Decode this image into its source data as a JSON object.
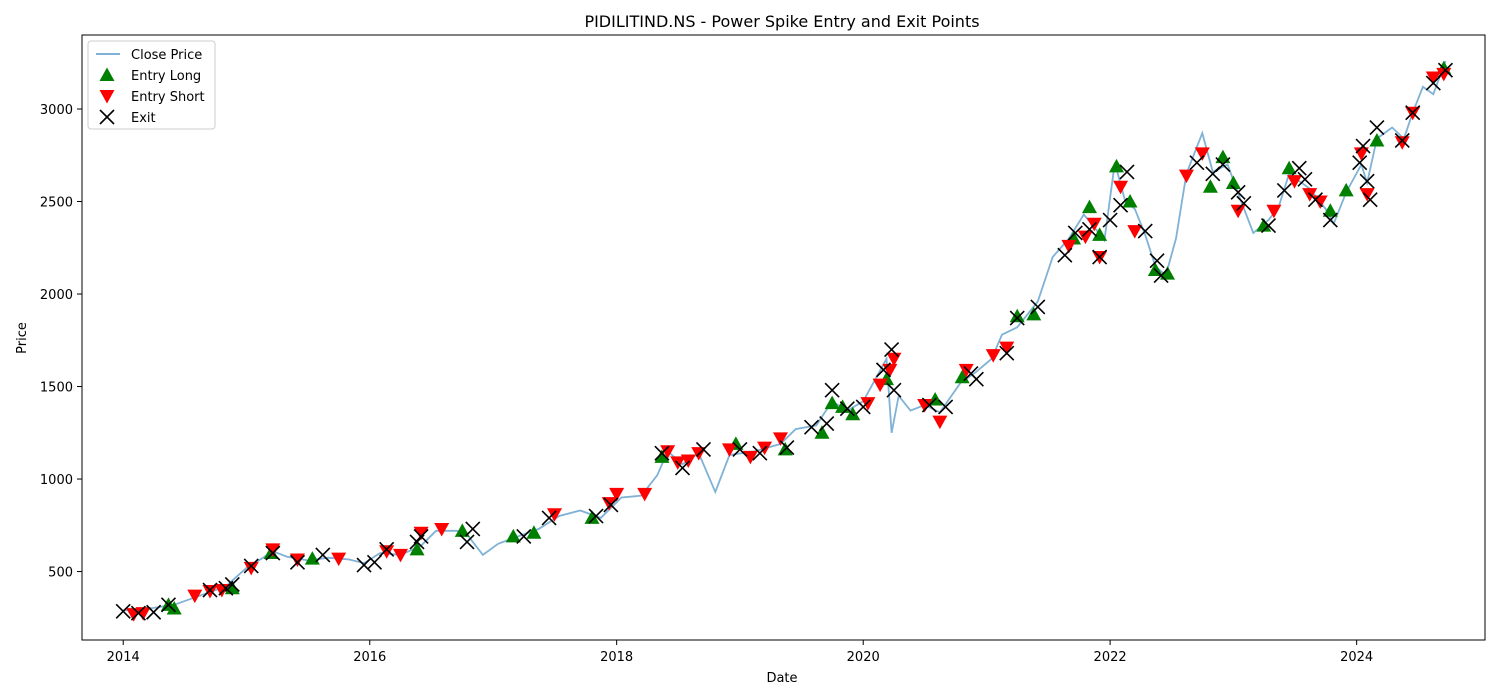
{
  "chart_data": {
    "type": "line",
    "title": "PIDILITIND.NS - Power Spike Entry and Exit Points",
    "xlabel": "Date",
    "ylabel": "Price",
    "xlim": [
      "2013-09-01",
      "2025-01-15"
    ],
    "ylim": [
      130,
      3400
    ],
    "x_ticks": [
      "2014",
      "2016",
      "2018",
      "2020",
      "2022",
      "2024"
    ],
    "y_ticks": [
      500,
      1000,
      1500,
      2000,
      2500,
      3000
    ],
    "legend_position": "top-left",
    "grid": false,
    "colors": {
      "close": "#7fb2d6",
      "entry_long": "#008000",
      "entry_short": "#ff0000",
      "exit": "#000000"
    },
    "series": [
      {
        "name": "Close Price",
        "style": "line",
        "points": [
          [
            "2014-01-01",
            290
          ],
          [
            "2014-03-01",
            295
          ],
          [
            "2014-06-01",
            320
          ],
          [
            "2014-09-01",
            380
          ],
          [
            "2014-11-01",
            420
          ],
          [
            "2015-01-01",
            520
          ],
          [
            "2015-02-15",
            570
          ],
          [
            "2015-03-20",
            610
          ],
          [
            "2015-05-01",
            580
          ],
          [
            "2015-07-01",
            560
          ],
          [
            "2015-09-01",
            575
          ],
          [
            "2015-11-01",
            565
          ],
          [
            "2015-12-15",
            545
          ],
          [
            "2016-02-01",
            600
          ],
          [
            "2016-04-01",
            590
          ],
          [
            "2016-06-01",
            640
          ],
          [
            "2016-07-15",
            720
          ],
          [
            "2016-09-15",
            720
          ],
          [
            "2016-10-15",
            700
          ],
          [
            "2016-12-01",
            590
          ],
          [
            "2017-01-15",
            650
          ],
          [
            "2017-03-15",
            690
          ],
          [
            "2017-05-15",
            730
          ],
          [
            "2017-07-15",
            800
          ],
          [
            "2017-09-15",
            830
          ],
          [
            "2017-11-15",
            790
          ],
          [
            "2018-01-15",
            900
          ],
          [
            "2018-03-15",
            910
          ],
          [
            "2018-05-01",
            1020
          ],
          [
            "2018-06-01",
            1150
          ],
          [
            "2018-07-15",
            1080
          ],
          [
            "2018-09-01",
            1140
          ],
          [
            "2018-10-20",
            930
          ],
          [
            "2018-12-01",
            1130
          ],
          [
            "2019-02-15",
            1150
          ],
          [
            "2019-05-01",
            1190
          ],
          [
            "2019-06-15",
            1270
          ],
          [
            "2019-08-15",
            1290
          ],
          [
            "2019-10-01",
            1420
          ],
          [
            "2019-11-15",
            1370
          ],
          [
            "2020-01-01",
            1420
          ],
          [
            "2020-02-15",
            1570
          ],
          [
            "2020-03-10",
            1650
          ],
          [
            "2020-03-25",
            1250
          ],
          [
            "2020-04-15",
            1450
          ],
          [
            "2020-05-20",
            1370
          ],
          [
            "2020-07-01",
            1400
          ],
          [
            "2020-08-15",
            1360
          ],
          [
            "2020-10-15",
            1520
          ],
          [
            "2020-12-01",
            1580
          ],
          [
            "2021-01-15",
            1650
          ],
          [
            "2021-02-15",
            1780
          ],
          [
            "2021-04-01",
            1820
          ],
          [
            "2021-06-01",
            1960
          ],
          [
            "2021-07-15",
            2200
          ],
          [
            "2021-09-01",
            2300
          ],
          [
            "2021-10-15",
            2430
          ],
          [
            "2021-11-20",
            2350
          ],
          [
            "2021-12-15",
            2290
          ],
          [
            "2022-01-15",
            2710
          ],
          [
            "2022-02-15",
            2500
          ],
          [
            "2022-03-15",
            2460
          ],
          [
            "2022-04-15",
            2320
          ],
          [
            "2022-05-15",
            2150
          ],
          [
            "2022-06-15",
            2100
          ],
          [
            "2022-07-15",
            2300
          ],
          [
            "2022-08-15",
            2650
          ],
          [
            "2022-10-01",
            2870
          ],
          [
            "2022-11-01",
            2660
          ],
          [
            "2022-12-15",
            2700
          ],
          [
            "2023-01-20",
            2520
          ],
          [
            "2023-03-01",
            2330
          ],
          [
            "2023-04-15",
            2400
          ],
          [
            "2023-05-15",
            2470
          ],
          [
            "2023-06-15",
            2650
          ],
          [
            "2023-08-15",
            2570
          ],
          [
            "2023-10-01",
            2460
          ],
          [
            "2023-10-25",
            2380
          ],
          [
            "2023-12-01",
            2550
          ],
          [
            "2024-01-15",
            2700
          ],
          [
            "2024-02-01",
            2600
          ],
          [
            "2024-03-01",
            2840
          ],
          [
            "2024-04-15",
            2900
          ],
          [
            "2024-05-20",
            2840
          ],
          [
            "2024-06-15",
            2980
          ],
          [
            "2024-07-15",
            3120
          ],
          [
            "2024-08-15",
            3080
          ],
          [
            "2024-09-20",
            3260
          ]
        ]
      },
      {
        "name": "Entry Long",
        "style": "marker",
        "points": [
          [
            "2014-05-15",
            320
          ],
          [
            "2014-06-01",
            300
          ],
          [
            "2014-11-20",
            410
          ],
          [
            "2015-03-15",
            600
          ],
          [
            "2015-07-15",
            570
          ],
          [
            "2016-05-20",
            620
          ],
          [
            "2016-10-01",
            720
          ],
          [
            "2017-03-01",
            690
          ],
          [
            "2017-05-01",
            710
          ],
          [
            "2017-10-20",
            790
          ],
          [
            "2018-05-15",
            1120
          ],
          [
            "2018-12-20",
            1190
          ],
          [
            "2019-05-15",
            1160
          ],
          [
            "2019-09-01",
            1250
          ],
          [
            "2019-10-01",
            1410
          ],
          [
            "2019-11-01",
            1390
          ],
          [
            "2019-12-01",
            1350
          ],
          [
            "2020-03-10",
            1540
          ],
          [
            "2020-08-01",
            1430
          ],
          [
            "2020-10-20",
            1550
          ],
          [
            "2021-04-01",
            1880
          ],
          [
            "2021-05-20",
            1890
          ],
          [
            "2021-09-15",
            2300
          ],
          [
            "2021-11-01",
            2470
          ],
          [
            "2021-12-01",
            2320
          ],
          [
            "2022-01-20",
            2690
          ],
          [
            "2022-03-01",
            2500
          ],
          [
            "2022-05-15",
            2130
          ],
          [
            "2022-06-20",
            2110
          ],
          [
            "2022-10-25",
            2580
          ],
          [
            "2022-12-01",
            2740
          ],
          [
            "2023-01-01",
            2600
          ],
          [
            "2023-04-01",
            2370
          ],
          [
            "2023-06-15",
            2680
          ],
          [
            "2023-10-15",
            2450
          ],
          [
            "2023-12-01",
            2560
          ],
          [
            "2024-03-01",
            2830
          ],
          [
            "2024-09-15",
            3220
          ]
        ]
      },
      {
        "name": "Entry Short",
        "style": "marker",
        "points": [
          [
            "2014-02-01",
            270
          ],
          [
            "2014-03-01",
            275
          ],
          [
            "2014-08-01",
            370
          ],
          [
            "2014-09-15",
            395
          ],
          [
            "2014-10-20",
            400
          ],
          [
            "2015-01-15",
            520
          ],
          [
            "2015-03-20",
            620
          ],
          [
            "2015-06-01",
            565
          ],
          [
            "2015-10-01",
            570
          ],
          [
            "2016-02-20",
            610
          ],
          [
            "2016-04-01",
            590
          ],
          [
            "2016-06-01",
            710
          ],
          [
            "2016-08-01",
            730
          ],
          [
            "2017-07-01",
            810
          ],
          [
            "2017-12-10",
            870
          ],
          [
            "2018-01-01",
            920
          ],
          [
            "2018-03-25",
            920
          ],
          [
            "2018-06-01",
            1150
          ],
          [
            "2018-07-01",
            1090
          ],
          [
            "2018-08-01",
            1100
          ],
          [
            "2018-09-01",
            1140
          ],
          [
            "2018-12-01",
            1160
          ],
          [
            "2019-02-01",
            1120
          ],
          [
            "2019-03-15",
            1170
          ],
          [
            "2019-05-01",
            1220
          ],
          [
            "2020-01-15",
            1410
          ],
          [
            "2020-02-20",
            1510
          ],
          [
            "2020-03-20",
            1590
          ],
          [
            "2020-04-01",
            1650
          ],
          [
            "2020-07-01",
            1400
          ],
          [
            "2020-08-15",
            1310
          ],
          [
            "2020-11-01",
            1590
          ],
          [
            "2021-01-20",
            1670
          ],
          [
            "2021-03-01",
            1710
          ],
          [
            "2021-09-01",
            2260
          ],
          [
            "2021-10-20",
            2310
          ],
          [
            "2021-11-15",
            2380
          ],
          [
            "2021-12-01",
            2200
          ],
          [
            "2022-02-01",
            2580
          ],
          [
            "2022-03-15",
            2340
          ],
          [
            "2022-08-15",
            2640
          ],
          [
            "2022-10-01",
            2760
          ],
          [
            "2023-01-15",
            2450
          ],
          [
            "2023-05-01",
            2450
          ],
          [
            "2023-07-01",
            2610
          ],
          [
            "2023-08-15",
            2540
          ],
          [
            "2023-09-15",
            2500
          ],
          [
            "2024-01-15",
            2760
          ],
          [
            "2024-02-01",
            2540
          ],
          [
            "2024-05-15",
            2820
          ],
          [
            "2024-06-15",
            2980
          ],
          [
            "2024-08-15",
            3170
          ],
          [
            "2024-09-15",
            3190
          ]
        ]
      },
      {
        "name": "Exit",
        "style": "marker",
        "points": [
          [
            "2014-01-01",
            285
          ],
          [
            "2014-02-15",
            275
          ],
          [
            "2014-04-01",
            280
          ],
          [
            "2014-05-15",
            320
          ],
          [
            "2014-09-15",
            400
          ],
          [
            "2014-11-01",
            410
          ],
          [
            "2014-11-20",
            430
          ],
          [
            "2015-01-15",
            530
          ],
          [
            "2015-03-20",
            600
          ],
          [
            "2015-06-01",
            550
          ],
          [
            "2015-08-15",
            590
          ],
          [
            "2015-12-15",
            535
          ],
          [
            "2016-01-15",
            550
          ],
          [
            "2016-02-20",
            620
          ],
          [
            "2016-05-20",
            660
          ],
          [
            "2016-06-01",
            690
          ],
          [
            "2016-10-15",
            660
          ],
          [
            "2016-11-01",
            730
          ],
          [
            "2017-04-01",
            690
          ],
          [
            "2017-06-15",
            790
          ],
          [
            "2017-11-01",
            800
          ],
          [
            "2017-12-15",
            860
          ],
          [
            "2018-05-15",
            1140
          ],
          [
            "2018-07-15",
            1060
          ],
          [
            "2018-09-15",
            1160
          ],
          [
            "2019-01-01",
            1160
          ],
          [
            "2019-03-01",
            1140
          ],
          [
            "2019-05-20",
            1170
          ],
          [
            "2019-08-01",
            1280
          ],
          [
            "2019-09-15",
            1300
          ],
          [
            "2019-10-01",
            1480
          ],
          [
            "2019-11-15",
            1380
          ],
          [
            "2020-01-01",
            1390
          ],
          [
            "2020-03-01",
            1590
          ],
          [
            "2020-03-25",
            1700
          ],
          [
            "2020-04-01",
            1480
          ],
          [
            "2020-07-15",
            1400
          ],
          [
            "2020-09-01",
            1390
          ],
          [
            "2020-11-15",
            1570
          ],
          [
            "2020-12-01",
            1540
          ],
          [
            "2021-03-01",
            1680
          ],
          [
            "2021-04-01",
            1870
          ],
          [
            "2021-06-01",
            1930
          ],
          [
            "2021-08-20",
            2210
          ],
          [
            "2021-09-20",
            2330
          ],
          [
            "2021-11-01",
            2350
          ],
          [
            "2021-12-01",
            2200
          ],
          [
            "2022-01-01",
            2400
          ],
          [
            "2022-02-01",
            2480
          ],
          [
            "2022-02-20",
            2660
          ],
          [
            "2022-04-15",
            2340
          ],
          [
            "2022-05-20",
            2180
          ],
          [
            "2022-06-01",
            2100
          ],
          [
            "2022-09-15",
            2710
          ],
          [
            "2022-11-01",
            2650
          ],
          [
            "2022-12-01",
            2700
          ],
          [
            "2023-01-15",
            2550
          ],
          [
            "2023-02-01",
            2490
          ],
          [
            "2023-04-15",
            2370
          ],
          [
            "2023-06-01",
            2560
          ],
          [
            "2023-07-15",
            2680
          ],
          [
            "2023-08-01",
            2620
          ],
          [
            "2023-09-01",
            2510
          ],
          [
            "2023-10-15",
            2400
          ],
          [
            "2024-01-10",
            2710
          ],
          [
            "2024-01-20",
            2800
          ],
          [
            "2024-02-01",
            2610
          ],
          [
            "2024-02-10",
            2510
          ],
          [
            "2024-03-01",
            2900
          ],
          [
            "2024-05-15",
            2830
          ],
          [
            "2024-06-15",
            2980
          ],
          [
            "2024-08-15",
            3140
          ],
          [
            "2024-09-20",
            3210
          ]
        ]
      }
    ]
  }
}
